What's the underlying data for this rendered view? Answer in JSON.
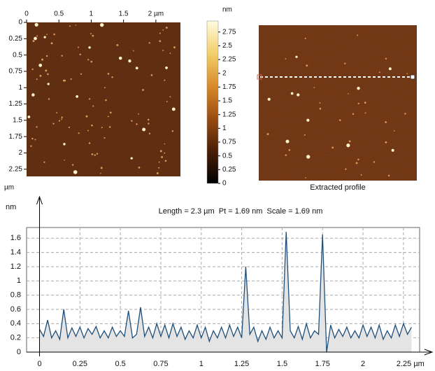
{
  "chart_data": [
    {
      "type": "image",
      "xlim": [
        0,
        2.38
      ],
      "xticks": [
        0,
        0.5,
        1,
        1.5,
        {
          "value": 2,
          "label": "2 µm"
        }
      ],
      "ylim": [
        0,
        2.36
      ],
      "yticks": [
        0,
        0.25,
        0.5,
        0.75,
        1,
        1.25,
        1.5,
        1.75,
        2,
        2.25
      ],
      "unit_label": "µm"
    },
    {
      "type": "colorbar",
      "title": "nm",
      "ylim": [
        0,
        2.95
      ],
      "yticks": [
        0,
        0.25,
        0.5,
        0.75,
        1,
        1.25,
        1.5,
        1.75,
        2,
        2.25,
        2.5,
        2.75
      ],
      "colors": [
        "#000000",
        "#4a1e06",
        "#9a4c12",
        "#d98a2a",
        "#f2cf6a",
        "#fffbe0"
      ]
    },
    {
      "type": "image",
      "caption": "Extracted profile"
    },
    {
      "type": "line",
      "title": "Length = 2.3 µm  Pt = 1.69 nm  Scale = 1.69 nm",
      "y_label": "nm",
      "x": [
        0,
        0.025,
        0.05,
        0.075,
        0.1,
        0.125,
        0.15,
        0.175,
        0.2,
        0.225,
        0.25,
        0.275,
        0.3,
        0.325,
        0.35,
        0.375,
        0.4,
        0.425,
        0.45,
        0.475,
        0.5,
        0.525,
        0.55,
        0.575,
        0.6,
        0.625,
        0.65,
        0.675,
        0.7,
        0.725,
        0.75,
        0.775,
        0.8,
        0.825,
        0.85,
        0.875,
        0.9,
        0.925,
        0.95,
        0.975,
        1,
        1.025,
        1.05,
        1.075,
        1.1,
        1.125,
        1.15,
        1.175,
        1.2,
        1.225,
        1.25,
        1.275,
        1.3,
        1.325,
        1.35,
        1.375,
        1.4,
        1.425,
        1.45,
        1.475,
        1.5,
        1.525,
        1.55,
        1.575,
        1.6,
        1.625,
        1.65,
        1.675,
        1.7,
        1.725,
        1.75,
        1.775,
        1.8,
        1.825,
        1.85,
        1.875,
        1.9,
        1.925,
        1.95,
        1.975,
        2,
        2.025,
        2.05,
        2.075,
        2.1,
        2.125,
        2.15,
        2.175,
        2.2,
        2.225,
        2.25,
        2.275,
        2.3
      ],
      "values": [
        0.32,
        0.22,
        0.45,
        0.2,
        0.3,
        0.18,
        0.6,
        0.2,
        0.34,
        0.22,
        0.35,
        0.2,
        0.33,
        0.25,
        0.36,
        0.2,
        0.3,
        0.2,
        0.35,
        0.22,
        0.3,
        0.22,
        0.58,
        0.2,
        0.25,
        0.63,
        0.22,
        0.35,
        0.2,
        0.4,
        0.22,
        0.38,
        0.2,
        0.4,
        0.22,
        0.35,
        0.18,
        0.3,
        0.2,
        0.38,
        0.2,
        0.35,
        0.15,
        0.3,
        0.2,
        0.35,
        0.2,
        0.38,
        0.22,
        0.35,
        0.2,
        1.2,
        0.25,
        0.35,
        0.15,
        0.3,
        0.18,
        0.35,
        0.2,
        0.3,
        0.2,
        1.69,
        0.3,
        0.2,
        0.36,
        0.18,
        0.4,
        0.2,
        0.3,
        0.25,
        1.65,
        0,
        0.38,
        0.2,
        0.32,
        0.22,
        0.35,
        0.2,
        0.3,
        0.2,
        0.38,
        0.22,
        0.35,
        0.2,
        0.38,
        0.18,
        0.3,
        0.2,
        0.38,
        0.22,
        0.4,
        0.25,
        0.35
      ],
      "color": "#1f4f7a",
      "fill": "#e4e4e4",
      "xlim": [
        -0.08,
        2.35
      ],
      "xticks": [
        0,
        0.25,
        0.5,
        0.75,
        1,
        1.25,
        1.5,
        1.75,
        2,
        {
          "value": 2.25,
          "label": "2.25 µm"
        }
      ],
      "ylim": [
        0,
        1.75
      ],
      "yticks": [
        0,
        0.2,
        0.4,
        0.6,
        0.8,
        1,
        1.2,
        1.4,
        1.6
      ],
      "grid": true
    }
  ]
}
